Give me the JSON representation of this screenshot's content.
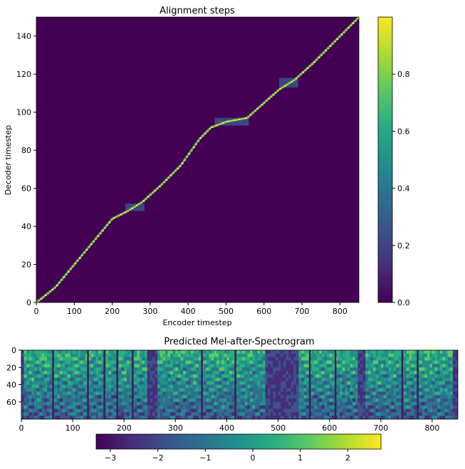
{
  "chart_data": [
    {
      "type": "heatmap",
      "title": "Alignment steps",
      "xlabel": "Encoder timestep",
      "ylabel": "Decoder timestep",
      "xlim": [
        0,
        850
      ],
      "ylim": [
        0,
        150
      ],
      "x_ticks": [
        0,
        100,
        200,
        300,
        400,
        500,
        600,
        700,
        800
      ],
      "y_ticks": [
        0,
        20,
        40,
        60,
        80,
        100,
        120,
        140
      ],
      "colormap": "viridis",
      "colorbar": {
        "orientation": "vertical",
        "range": [
          0,
          1
        ],
        "ticks": [
          "0.0",
          "0.2",
          "0.4",
          "0.6",
          "0.8"
        ],
        "tick_values": [
          0,
          0.2,
          0.4,
          0.6,
          0.8
        ]
      },
      "background_value": 0,
      "alignment_path": [
        {
          "encoder": 0,
          "decoder": 0
        },
        {
          "encoder": 50,
          "decoder": 8
        },
        {
          "encoder": 100,
          "decoder": 20
        },
        {
          "encoder": 150,
          "decoder": 32
        },
        {
          "encoder": 200,
          "decoder": 44
        },
        {
          "encoder": 240,
          "decoder": 48
        },
        {
          "encoder": 280,
          "decoder": 53
        },
        {
          "encoder": 330,
          "decoder": 62
        },
        {
          "encoder": 380,
          "decoder": 72
        },
        {
          "encoder": 430,
          "decoder": 86
        },
        {
          "encoder": 460,
          "decoder": 92
        },
        {
          "encoder": 500,
          "decoder": 95
        },
        {
          "encoder": 555,
          "decoder": 97
        },
        {
          "encoder": 600,
          "decoder": 105
        },
        {
          "encoder": 640,
          "decoder": 112
        },
        {
          "encoder": 680,
          "decoder": 117
        },
        {
          "encoder": 730,
          "decoder": 126
        },
        {
          "encoder": 800,
          "decoder": 140
        },
        {
          "encoder": 850,
          "decoder": 150
        }
      ],
      "diffuse_regions": [
        {
          "encoder_range": [
            235,
            285
          ],
          "decoder_range": [
            48,
            52
          ]
        },
        {
          "encoder_range": [
            470,
            560
          ],
          "decoder_range": [
            93,
            97
          ]
        },
        {
          "encoder_range": [
            640,
            690
          ],
          "decoder_range": [
            113,
            118
          ]
        }
      ]
    },
    {
      "type": "heatmap",
      "title": "Predicted Mel-after-Spectrogram",
      "xlim": [
        0,
        850
      ],
      "ylim": [
        80,
        0
      ],
      "x_ticks": [
        0,
        100,
        200,
        300,
        400,
        500,
        600,
        700,
        800
      ],
      "y_ticks": [
        0,
        20,
        40,
        60
      ],
      "colormap": "viridis",
      "colorbar": {
        "orientation": "horizontal",
        "range": [
          -3.3,
          2.7
        ],
        "ticks": [
          "−3",
          "−2",
          "−1",
          "0",
          "1",
          "2"
        ],
        "tick_values": [
          -3,
          -2,
          -1,
          0,
          1,
          2
        ]
      },
      "silence_regions": [
        {
          "start": 0,
          "end": 5
        },
        {
          "start": 245,
          "end": 265
        },
        {
          "start": 475,
          "end": 540
        },
        {
          "start": 655,
          "end": 670
        },
        {
          "start": 840,
          "end": 850
        }
      ],
      "pause_lines": [
        60,
        128,
        160,
        185,
        215,
        350,
        415,
        560,
        610,
        740,
        770
      ]
    }
  ]
}
